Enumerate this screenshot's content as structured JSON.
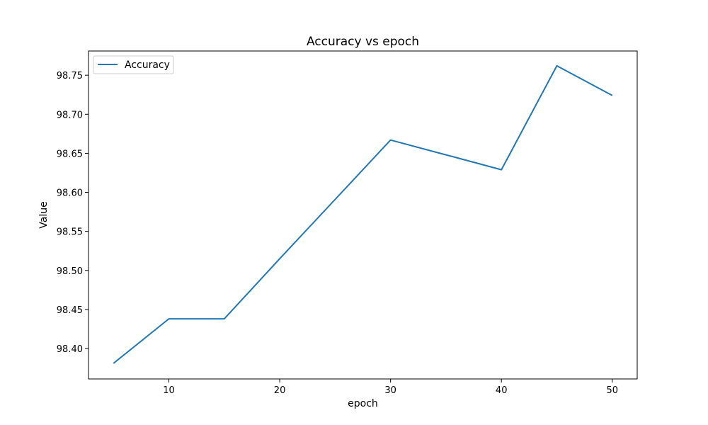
{
  "chart_data": {
    "type": "line",
    "title": "Accuracy vs epoch",
    "xlabel": "epoch",
    "ylabel": "Value",
    "xlim": [
      2.75,
      52.25
    ],
    "ylim": [
      98.361,
      98.781
    ],
    "xticks": [
      10,
      20,
      30,
      40,
      50
    ],
    "yticks": [
      98.4,
      98.45,
      98.5,
      98.55,
      98.6,
      98.65,
      98.7,
      98.75
    ],
    "grid": false,
    "legend_position": "top-left",
    "series": [
      {
        "name": "Accuracy",
        "color": "#1f77b4",
        "x": [
          5,
          10,
          15,
          20,
          25,
          30,
          35,
          40,
          45,
          50
        ],
        "y": [
          98.381,
          98.438,
          98.438,
          98.515,
          98.591,
          98.667,
          98.648,
          98.629,
          98.762,
          98.724
        ]
      }
    ]
  }
}
